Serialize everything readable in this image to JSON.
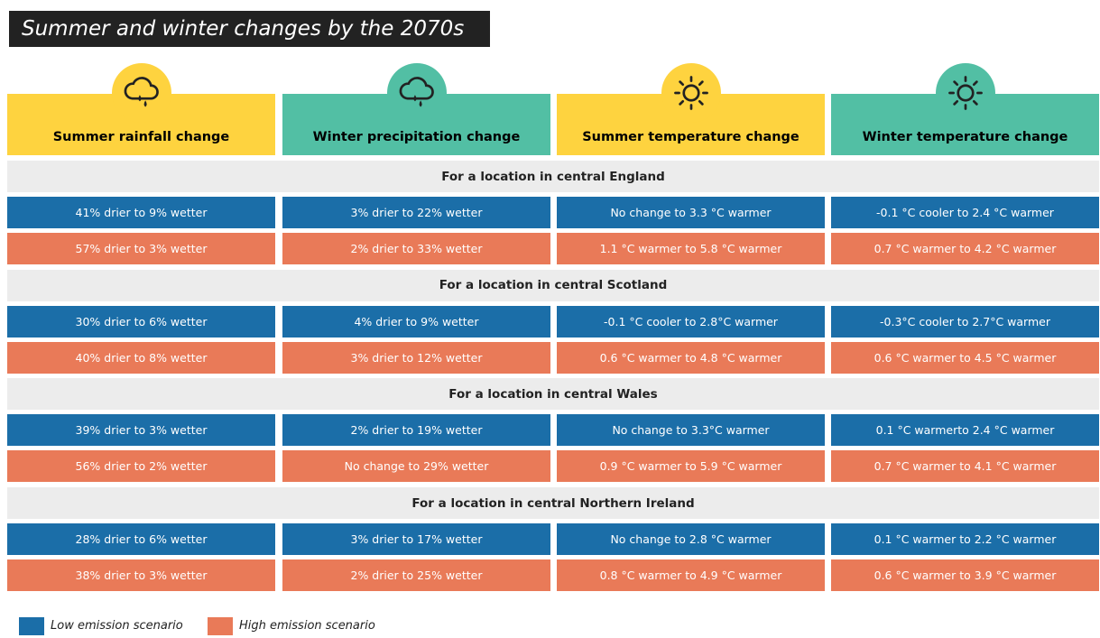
{
  "title": "Summer and winter changes by the 2070s",
  "columns": [
    {
      "label": "Summer rainfall change",
      "color": "#fed33f",
      "icon": "rain"
    },
    {
      "label": "Winter precipitation change",
      "color": "#52bfa4",
      "icon": "rain"
    },
    {
      "label": "Summer temperature change",
      "color": "#fed33f",
      "icon": "sun"
    },
    {
      "label": "Winter temperature change",
      "color": "#52bfa4",
      "icon": "sun"
    }
  ],
  "sections": [
    {
      "heading": "For a location in central England",
      "low": [
        "41% drier to 9% wetter",
        "3% drier to 22% wetter",
        "No change to 3.3 °C warmer",
        "-0.1 °C cooler to 2.4 °C warmer"
      ],
      "high": [
        "57% drier to 3% wetter",
        "2% drier to 33% wetter",
        "1.1 °C warmer to 5.8 °C warmer",
        "0.7 °C warmer to 4.2 °C warmer"
      ]
    },
    {
      "heading": "For a location in central Scotland",
      "low": [
        "30% drier to 6% wetter",
        "4% drier to 9% wetter",
        "-0.1 °C cooler to 2.8°C warmer",
        "-0.3°C cooler to 2.7°C warmer"
      ],
      "high": [
        "40% drier to 8% wetter",
        "3% drier to 12% wetter",
        "0.6 °C warmer to 4.8 °C warmer",
        "0.6 °C warmer to 4.5 °C warmer"
      ]
    },
    {
      "heading": "For a location in central Wales",
      "low": [
        "39% drier to 3% wetter",
        "2% drier to 19% wetter",
        "No change to 3.3°C warmer",
        "0.1 °C warmerto 2.4 °C warmer"
      ],
      "high": [
        "56% drier to 2% wetter",
        "No change to 29% wetter",
        "0.9 °C warmer to 5.9 °C warmer",
        "0.7 °C warmer to 4.1 °C warmer"
      ]
    },
    {
      "heading": "For a location in central Northern Ireland",
      "low": [
        "28% drier to 6% wetter",
        "3% drier to 17% wetter",
        "No change to 2.8 °C warmer",
        "0.1 °C warmer to 2.2 °C warmer"
      ],
      "high": [
        "38% drier to 3% wetter",
        "2% drier to 25% wetter",
        "0.8 °C warmer to 4.9 °C warmer",
        "0.6 °C warmer to 3.9 °C warmer"
      ]
    }
  ],
  "legend": [
    {
      "label": "Low emission scenario",
      "color": "#1b6ea8"
    },
    {
      "label": "High emission scenario",
      "color": "#e97a58"
    }
  ]
}
